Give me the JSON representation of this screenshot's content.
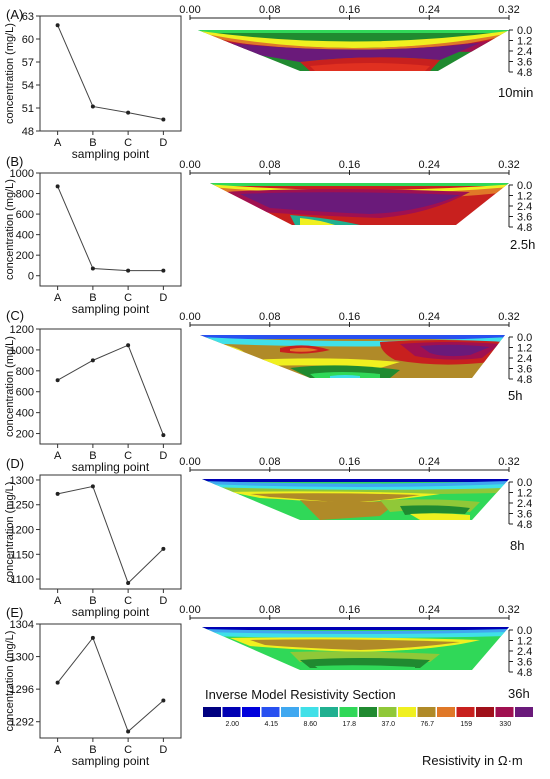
{
  "panels": [
    {
      "label": "(A)",
      "time": "10min",
      "chart_data": {
        "type": "line",
        "categories": [
          "A",
          "B",
          "C",
          "D"
        ],
        "values": [
          61.8,
          51.2,
          50.4,
          49.5
        ],
        "xlabel": "sampling point",
        "ylabel": "concentration (mg/L)",
        "ylim": [
          48,
          63
        ],
        "yticks": [
          48,
          51,
          54,
          57,
          60,
          63
        ],
        "ytick_labels": [
          "48",
          "51",
          "54",
          "57",
          "60",
          "63"
        ]
      }
    },
    {
      "label": "(B)",
      "time": "2.5h",
      "chart_data": {
        "type": "line",
        "categories": [
          "A",
          "B",
          "C",
          "D"
        ],
        "values": [
          870,
          70,
          50,
          50
        ],
        "xlabel": "sampling point",
        "ylabel": "concentration (mg/L)",
        "ylim": [
          -100,
          1000
        ],
        "yticks": [
          0,
          200,
          400,
          600,
          800,
          1000
        ],
        "ytick_labels": [
          "0",
          "200",
          "400",
          "600",
          "800",
          "1000"
        ]
      }
    },
    {
      "label": "(C)",
      "time": "5h",
      "chart_data": {
        "type": "line",
        "categories": [
          "A",
          "B",
          "C",
          "D"
        ],
        "values": [
          710,
          900,
          1045,
          185
        ],
        "xlabel": "sampling point",
        "ylabel": "concentration (mg/L)",
        "ylim": [
          100,
          1200
        ],
        "yticks": [
          200,
          400,
          600,
          800,
          1000,
          1200
        ],
        "ytick_labels": [
          "200",
          "400",
          "600",
          "800",
          "1000",
          "1200"
        ]
      }
    },
    {
      "label": "(D)",
      "time": "8h",
      "chart_data": {
        "type": "line",
        "categories": [
          "A",
          "B",
          "C",
          "D"
        ],
        "values": [
          1272,
          1287,
          1092,
          1161
        ],
        "xlabel": "sampling point",
        "ylabel": "concentration (mg/L)",
        "ylim": [
          1080,
          1310
        ],
        "yticks": [
          1100,
          1150,
          1200,
          1250,
          1300
        ],
        "ytick_labels": [
          "1100",
          "1150",
          "1200",
          "1250",
          "1300"
        ]
      }
    },
    {
      "label": "(E)",
      "time": "36h",
      "chart_data": {
        "type": "line",
        "categories": [
          "A",
          "B",
          "C",
          "D"
        ],
        "values": [
          1296.8,
          1302.3,
          1290.8,
          1294.6
        ],
        "xlabel": "sampling point",
        "ylabel": "concentration (mg/L)",
        "ylim": [
          1290,
          1304
        ],
        "yticks": [
          1292,
          1296,
          1300,
          1304
        ],
        "ytick_labels": [
          "1292",
          "1296",
          "1300",
          "1304"
        ]
      }
    }
  ],
  "section": {
    "x_ticks": [
      0.0,
      0.08,
      0.16,
      0.24,
      0.32
    ],
    "x_tick_labels": [
      "0.00",
      "0.08",
      "0.16",
      "0.24",
      "0.32"
    ],
    "depth_ticks": [
      0.0,
      1.2,
      2.4,
      3.6,
      4.8
    ],
    "depth_tick_labels": [
      "0.0",
      "1.2",
      "2.4",
      "3.6",
      "4.8"
    ],
    "colors": [
      "#000080",
      "#0000b4",
      "#0000dc",
      "#2850f0",
      "#40a8f0",
      "#40e0e8",
      "#20b090",
      "#30d858",
      "#208a30",
      "#90c838",
      "#f0f020",
      "#b08a28",
      "#e07828",
      "#c8201e",
      "#a0101a",
      "#a01050",
      "#6a1a7a"
    ]
  },
  "legend": {
    "title": "Inverse Model Resistivity Section",
    "values": [
      "2.00",
      "4.15",
      "8.60",
      "17.8",
      "37.0",
      "76.7",
      "159",
      "330"
    ],
    "unit_label": "Resistivity in Ω·m"
  }
}
